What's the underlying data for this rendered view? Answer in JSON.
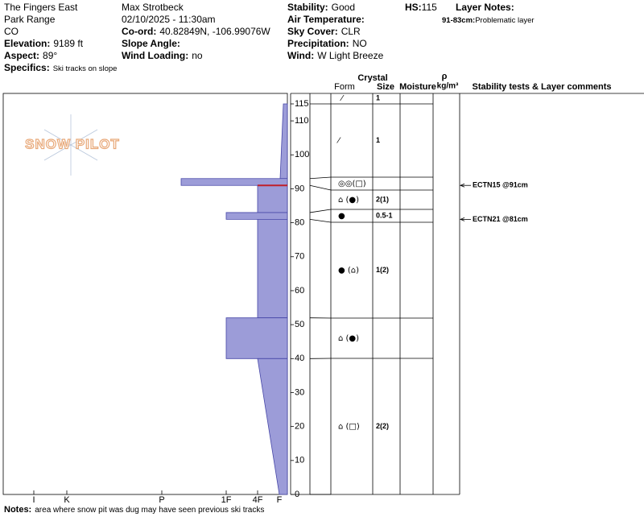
{
  "header": {
    "columns": [
      [
        {
          "value": "The Fingers East"
        },
        {
          "value": "Park Range"
        },
        {
          "value": "CO"
        },
        {
          "label": "Elevation:",
          "value": "9189 ft"
        },
        {
          "label": "Aspect:",
          "value": "89°"
        },
        {
          "label": "Specifics:",
          "value": "Ski tracks on slope"
        }
      ],
      [
        {
          "value": "Max Strotbeck"
        },
        {
          "value": "02/10/2025 - 11:30am"
        },
        {
          "label": "Co-ord:",
          "value": "40.82849N, -106.99076W"
        },
        {
          "label": "Slope Angle:"
        },
        {
          "label": "Wind Loading:",
          "value": "no"
        }
      ],
      [
        {
          "label": "Stability:",
          "value": "Good"
        },
        {
          "label": "Air Temperature:"
        },
        {
          "label": "Sky Cover:",
          "value": "CLR"
        },
        {
          "label": "Precipitation:",
          "value": "NO"
        },
        {
          "label": "Wind:",
          "value": "W Light Breeze"
        }
      ],
      [
        {
          "label": "HS:",
          "value": "115"
        }
      ]
    ],
    "layer_notes_title": "Layer Notes:",
    "layer_note": {
      "label": "91-83cm:",
      "value": "Problematic layer"
    }
  },
  "logo": "SNOW PILOT",
  "profile": {
    "depth_lim": [
      0,
      115
    ],
    "depth_ticks": [
      0,
      10,
      20,
      30,
      40,
      50,
      60,
      70,
      80,
      90,
      100,
      110,
      115
    ],
    "hardness_ticks": [
      {
        "value": 6,
        "label": "I"
      },
      {
        "value": 5,
        "label": "K"
      },
      {
        "value": 4,
        "label": "P"
      },
      {
        "value": 3,
        "label": "1F"
      },
      {
        "value": 2,
        "label": "4F"
      },
      {
        "value": 1,
        "label": "F"
      }
    ],
    "color": "#9c9cd8",
    "surface": {
      "form": "⁄",
      "size": "1"
    },
    "layers": [
      {
        "top": 115,
        "bottom": 93,
        "hardness_top": 0.5,
        "hardness_bottom": 0.9,
        "form": "⁄",
        "size": "1"
      },
      {
        "top": 93,
        "bottom": 91,
        "hardness_top": 3.7,
        "hardness_bottom": 3.7,
        "form": "◎◎(□)"
      },
      {
        "top": 91,
        "bottom": 83,
        "hardness_top": 2,
        "hardness_bottom": 2,
        "form": "⌂ (●)",
        "size": "2(1)",
        "critical": true
      },
      {
        "top": 83,
        "bottom": 81,
        "hardness_top": 3,
        "hardness_bottom": 3,
        "form": "●",
        "size": "0.5-1"
      },
      {
        "top": 81,
        "bottom": 52,
        "hardness_top": 2,
        "hardness_bottom": 2,
        "form": "● (⌂)",
        "size": "1(2)"
      },
      {
        "top": 52,
        "bottom": 40,
        "hardness_top": 3,
        "hardness_bottom": 3,
        "form": "⌂ (●)"
      },
      {
        "top": 40,
        "bottom": 0,
        "hardness_top": 2,
        "hardness_bottom": 1,
        "form": "⌂ (□)",
        "size": "2(2)"
      }
    ],
    "tests": [
      {
        "label": "ECTN15 @91cm",
        "depth": 91
      },
      {
        "label": "ECTN21 @81cm",
        "depth": 81
      }
    ],
    "columns": {
      "crystal": "Crystal",
      "form": "Form",
      "size": "Size",
      "moisture": "Moisture",
      "rho": "ρ",
      "density": "kg/m³",
      "comments": "Stability tests & Layer comments"
    }
  },
  "notes": {
    "label": "Notes:",
    "value": "area where snow pit was dug may have seen previous ski tracks"
  }
}
